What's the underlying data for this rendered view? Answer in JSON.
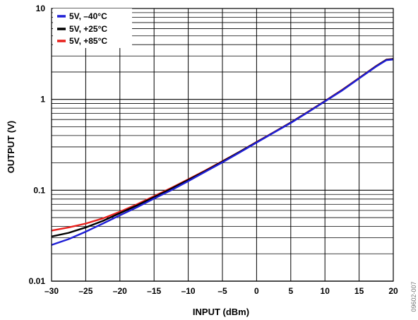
{
  "chart_data": {
    "type": "line",
    "xlabel": "INPUT (dBm)",
    "ylabel": "OUTPUT (V)",
    "xlim": [
      -30,
      20
    ],
    "ylim": [
      0.01,
      10
    ],
    "yscale": "log",
    "grid": true,
    "legend_position": "top-left",
    "x_tick_labels": [
      "–30",
      "–25",
      "–20",
      "–15",
      "–10",
      "–5",
      "0",
      "5",
      "10",
      "15",
      "20"
    ],
    "y_tick_labels": [
      "0.01",
      "0.1",
      "1",
      "10"
    ],
    "series": [
      {
        "name": "5V, –40°C",
        "color": "#1f1fd6",
        "x": [
          -30,
          -27.5,
          -25,
          -22.5,
          -20,
          -17.5,
          -15,
          -12.5,
          -10,
          -7.5,
          -5,
          -2.5,
          0,
          2.5,
          5,
          7.5,
          10,
          12.5,
          15,
          17.5,
          19,
          20
        ],
        "y": [
          0.025,
          0.029,
          0.035,
          0.043,
          0.053,
          0.065,
          0.081,
          0.1,
          0.126,
          0.16,
          0.203,
          0.26,
          0.335,
          0.43,
          0.55,
          0.72,
          0.95,
          1.25,
          1.7,
          2.3,
          2.7,
          2.75
        ]
      },
      {
        "name": "5V, +25°C",
        "color": "#000000",
        "x": [
          -30,
          -27.5,
          -25,
          -22.5,
          -20,
          -17.5,
          -15,
          -12.5,
          -10,
          -7.5,
          -5,
          -2.5,
          0,
          2.5,
          5,
          7.5,
          10,
          12.5,
          15,
          17.5,
          19,
          20
        ],
        "y": [
          0.031,
          0.034,
          0.039,
          0.046,
          0.056,
          0.068,
          0.084,
          0.104,
          0.13,
          0.163,
          0.207,
          0.264,
          0.338,
          0.432,
          0.555,
          0.725,
          0.955,
          1.26,
          1.71,
          2.32,
          2.73,
          2.78
        ]
      },
      {
        "name": "5V, +85°C",
        "color": "#e8201c",
        "x": [
          -30,
          -27.5,
          -25,
          -22.5,
          -20,
          -17.5,
          -15,
          -12.5,
          -10,
          -7.5,
          -5,
          -2.5,
          0,
          2.5,
          5,
          7.5,
          10,
          12.5,
          15,
          17.5,
          19,
          20
        ],
        "y": [
          0.036,
          0.039,
          0.043,
          0.049,
          0.058,
          0.07,
          0.086,
          0.106,
          0.132,
          0.165,
          0.209,
          0.265,
          0.34,
          0.434,
          0.557,
          0.728,
          0.96,
          1.27,
          1.72,
          2.33,
          2.74,
          2.79
        ]
      }
    ]
  },
  "figure_id": "09602-007"
}
